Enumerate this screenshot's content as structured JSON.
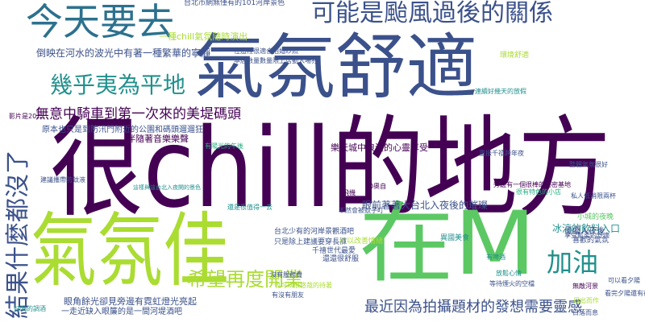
{
  "palette": {
    "dark_purple": "#440154",
    "indigo": "#3b518b",
    "blue": "#2c718e",
    "teal": "#21908d",
    "green": "#27ad81",
    "light_green": "#5cc863",
    "lime": "#aadc32",
    "yellow_green": "#c8e020"
  },
  "words": [
    {
      "text": "很chill的地方",
      "color": "#440154"
    },
    {
      "text": "氣氛舒適",
      "color": "#3b518b"
    },
    {
      "text": "氣氛佳",
      "color": "#aadc32"
    },
    {
      "text": "在M",
      "color": "#5cc863"
    },
    {
      "text": "今天要去",
      "color": "#2c718e"
    },
    {
      "text": "可能是颱風過後的關係",
      "color": "#3b518b"
    },
    {
      "text": "幾乎夷為平地",
      "color": "#21908d"
    },
    {
      "text": "結果什麼都沒了",
      "color": "#3b518b"
    },
    {
      "text": "加油",
      "color": "#21908d"
    },
    {
      "text": "希望再度開業",
      "color": "#aadc32"
    },
    {
      "text": "最近因為拍攝題材的發想需要靈感",
      "color": "#3b518b"
    },
    {
      "text": "無意中騎車到第一次來的美堤碼頭",
      "color": "#440154"
    },
    {
      "text": "倒映在河水的波光中有著一種繁華的寧靜",
      "color": "#3b518b"
    },
    {
      "text": "原本也只是到防汛門附近的公園和碼頭遛遛狂",
      "color": "#3b518b"
    },
    {
      "text": "伴隨著音樂樂聲",
      "color": "#440154"
    },
    {
      "text": "一種chill氣氛隨時演出",
      "color": "#aadc32"
    },
    {
      "text": "台北市網無僅有的101河岸景色",
      "color": "#3b518b"
    },
    {
      "text": "眼前著著大台北入夜後的璀璨",
      "color": "#3b518b"
    },
    {
      "text": "冰涼的飲料入口",
      "color": "#21908d"
    },
    {
      "text": "眼角餘光卻見旁邊有霓虹燈光亮起",
      "color": "#3b518b"
    },
    {
      "text": "一走近缺入眼簾的是一間河堤酒吧",
      "color": "#3b518b"
    },
    {
      "text": "優優入夜後",
      "color": "#3b518b"
    },
    {
      "text": "這樣與這台北入夜開的景色",
      "color": "#21908d"
    },
    {
      "text": "樂天城中浪漫的心靈享受",
      "color": "#440154"
    },
    {
      "text": "只是除上建議要穿長褲",
      "color": "#3b518b"
    },
    {
      "text": "千禧世代最愛",
      "color": "#3b518b"
    },
    {
      "text": "還還很舒服",
      "color": "#3b518b"
    },
    {
      "text": "台北少有的河岸景觀酒吧",
      "color": "#3b518b"
    },
    {
      "text": "喜歡的氣氛",
      "color": "#3b518b"
    },
    {
      "text": "有陽光的午後",
      "color": "#27ad81"
    },
    {
      "text": "很有特色的小店",
      "color": "#27ad81"
    },
    {
      "text": "小城的夜晚",
      "color": "#5cc863"
    },
    {
      "text": "影片是2022",
      "color": "#440154"
    },
    {
      "text": "建議攜帶防蚊液",
      "color": "#3b518b"
    },
    {
      "text": "重振千禧跨年夜",
      "color": "#3b518b"
    },
    {
      "text": "享受鬆柔的舒適",
      "color": "#3b518b"
    },
    {
      "text": "異國美食",
      "color": "#21908d"
    },
    {
      "text": "有啤酒",
      "color": "#21908d"
    },
    {
      "text": "飛機",
      "color": "#440154"
    },
    {
      "text": "90奧自",
      "color": "#440154"
    },
    {
      "text": "不然會被蚊子叮",
      "color": "#3b518b"
    },
    {
      "text": "可以改善情緒",
      "color": "#aadc32"
    },
    {
      "text": "放鬆心情",
      "color": "#21908d"
    },
    {
      "text": "連續好幾天的放假",
      "color": "#21908d"
    },
    {
      "text": "旁邊有一個很棒的秘密基地",
      "color": "#440154"
    },
    {
      "text": "等待煙火的空檔",
      "color": "#3b518b"
    },
    {
      "text": "無敵河景",
      "color": "#440154"
    },
    {
      "text": "日出而作",
      "color": "#aadc32"
    },
    {
      "text": "日落而息",
      "color": "#3b518b"
    },
    {
      "text": "可以看夕陽",
      "color": "#3b518b"
    },
    {
      "text": "看完夕陽還有夜景",
      "color": "#3b518b"
    },
    {
      "text": "本店數量數量限上店動入場券",
      "color": "#3b518b"
    },
    {
      "text": "在這裡很適合拍婚紗照",
      "color": "#3b518b"
    },
    {
      "text": "環境舒適",
      "color": "#aadc32"
    },
    {
      "text": "好喝的調酒",
      "color": "#21908d"
    },
    {
      "text": "私人低消限兩杯",
      "color": "#3b518b"
    },
    {
      "text": "沒有服務費",
      "color": "#3b518b"
    },
    {
      "text": "也可以很悠哉的待著",
      "color": "#aadc32"
    },
    {
      "text": "整體氣氛很好",
      "color": "#3b518b"
    },
    {
      "text": "有沒有朋友",
      "color": "#3b518b"
    },
    {
      "text": "還是很值得一去",
      "color": "#21908d"
    }
  ]
}
